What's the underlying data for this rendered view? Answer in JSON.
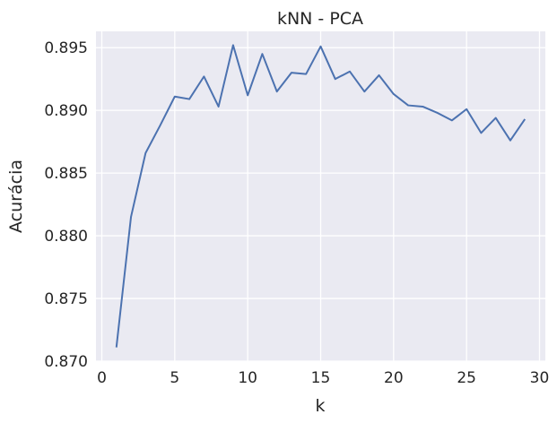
{
  "chart_data": {
    "type": "line",
    "title": "kNN - PCA",
    "xlabel": "k",
    "ylabel": "Acurácia",
    "xlim": [
      -0.4,
      30.4
    ],
    "ylim": [
      0.87,
      0.8963
    ],
    "x_ticks": [
      0,
      5,
      10,
      15,
      20,
      25,
      30
    ],
    "x_tick_labels": [
      "0",
      "5",
      "10",
      "15",
      "20",
      "25",
      "30"
    ],
    "y_ticks": [
      0.87,
      0.875,
      0.88,
      0.885,
      0.89,
      0.895
    ],
    "y_tick_labels": [
      "0.870",
      "0.875",
      "0.880",
      "0.885",
      "0.890",
      "0.895"
    ],
    "grid": true,
    "legend": "none",
    "colors": {
      "background": "#eaeaf2",
      "grid": "#ffffff",
      "line": "#4c72b0"
    },
    "series": [
      {
        "x": [
          1,
          2,
          3,
          4,
          5,
          6,
          7,
          8,
          9,
          10,
          11,
          12,
          13,
          14,
          15,
          16,
          17,
          18,
          19,
          20,
          21,
          22,
          23,
          24,
          25,
          26,
          27,
          28,
          29
        ],
        "values": [
          0.8711,
          0.8815,
          0.8866,
          0.8888,
          0.8911,
          0.8909,
          0.8927,
          0.8903,
          0.8952,
          0.8912,
          0.8945,
          0.8915,
          0.893,
          0.8929,
          0.8951,
          0.8925,
          0.8931,
          0.8915,
          0.8928,
          0.8913,
          0.8904,
          0.8903,
          0.8898,
          0.8892,
          0.8901,
          0.8882,
          0.8894,
          0.8876,
          0.8893
        ]
      }
    ]
  }
}
